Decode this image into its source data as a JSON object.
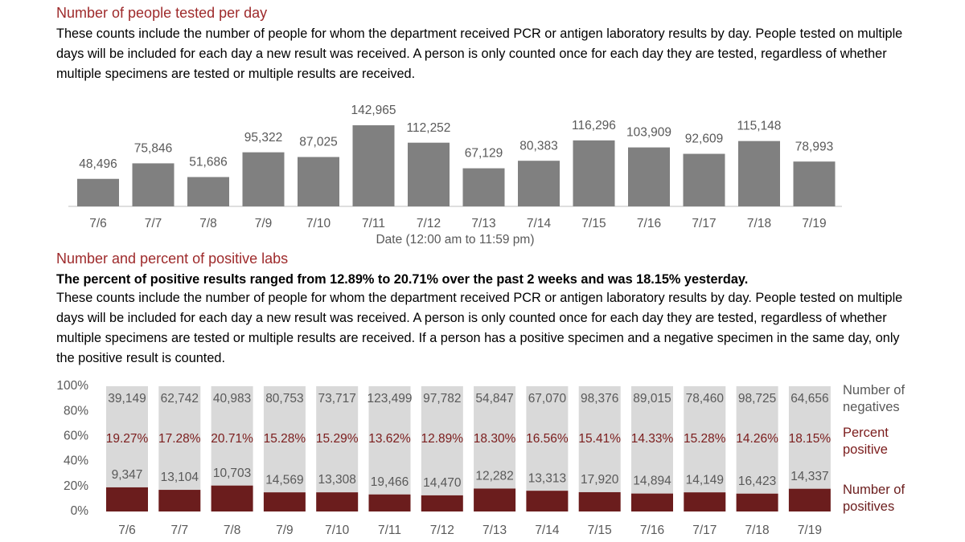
{
  "chart_data": [
    {
      "type": "bar",
      "title": "Number of people tested per day",
      "description": "These counts include the number of people for whom the department received PCR or antigen laboratory results by day. People tested on multiple days will be included for each day a new result was received. A person is only counted once for each day they are tested, regardless of whether multiple specimens are tested or multiple results are received.",
      "xlabel": "Date (12:00 am to 11:59 pm)",
      "categories": [
        "7/6",
        "7/7",
        "7/8",
        "7/9",
        "7/10",
        "7/11",
        "7/12",
        "7/13",
        "7/14",
        "7/15",
        "7/16",
        "7/17",
        "7/18",
        "7/19"
      ],
      "values": [
        48496,
        75846,
        51686,
        95322,
        87025,
        142965,
        112252,
        67129,
        80383,
        116296,
        103909,
        92609,
        115148,
        78993
      ],
      "value_labels": [
        "48,496",
        "75,846",
        "51,686",
        "95,322",
        "87,025",
        "142,965",
        "112,252",
        "67,129",
        "80,383",
        "116,296",
        "103,909",
        "92,609",
        "115,148",
        "78,993"
      ],
      "color": "#808080"
    },
    {
      "type": "stacked_percent_bar",
      "title": "Number and percent of positive labs",
      "note": "The percent of positive results ranged from 12.89% to 20.71% over the past 2 weeks and was 18.15% yesterday.",
      "description": "These counts include the number of people for whom the department received PCR or antigen laboratory results by day. People tested on multiple days will be included for each day a new result was received. A person is only counted once for each day they are tested, regardless of whether multiple specimens are tested or multiple results are received. If a person has a positive specimen and a negative specimen in the same day, only the positive result is counted.",
      "categories": [
        "7/6",
        "7/7",
        "7/8",
        "7/9",
        "7/10",
        "7/11",
        "7/12",
        "7/13",
        "7/14",
        "7/15",
        "7/16",
        "7/17",
        "7/18",
        "7/19"
      ],
      "ylim": [
        0,
        100
      ],
      "yticks": [
        {
          "value": 0,
          "label": "0%"
        },
        {
          "value": 20,
          "label": "20%"
        },
        {
          "value": 40,
          "label": "40%"
        },
        {
          "value": 60,
          "label": "60%"
        },
        {
          "value": 80,
          "label": "80%"
        },
        {
          "value": 100,
          "label": "100%"
        }
      ],
      "series": [
        {
          "name": "Number of negatives",
          "color": "#d9d9d9",
          "values": [
            39149,
            62742,
            40983,
            80753,
            73717,
            123499,
            97782,
            54847,
            67070,
            98376,
            89015,
            78460,
            98725,
            64656
          ],
          "value_labels": [
            "39,149",
            "62,742",
            "40,983",
            "80,753",
            "73,717",
            "123,499",
            "97,782",
            "54,847",
            "67,070",
            "98,376",
            "89,015",
            "78,460",
            "98,725",
            "64,656"
          ]
        },
        {
          "name": "Percent positive",
          "color": "#7b1c1c",
          "values": [
            19.27,
            17.28,
            20.71,
            15.28,
            15.29,
            13.62,
            12.89,
            18.3,
            16.56,
            15.41,
            14.33,
            15.28,
            14.26,
            18.15
          ],
          "value_labels": [
            "19.27%",
            "17.28%",
            "20.71%",
            "15.28%",
            "15.29%",
            "13.62%",
            "12.89%",
            "18.30%",
            "16.56%",
            "15.41%",
            "14.33%",
            "15.28%",
            "14.26%",
            "18.15%"
          ]
        },
        {
          "name": "Number of positives",
          "color": "#6b1d1d",
          "values": [
            9347,
            13104,
            10703,
            14569,
            13308,
            19466,
            14470,
            12282,
            13313,
            17920,
            14894,
            14149,
            16423,
            14337
          ],
          "value_labels": [
            "9,347",
            "13,104",
            "10,703",
            "14,569",
            "13,308",
            "19,466",
            "14,470",
            "12,282",
            "13,313",
            "17,920",
            "14,894",
            "14,149",
            "16,423",
            "14,337"
          ]
        }
      ]
    }
  ]
}
